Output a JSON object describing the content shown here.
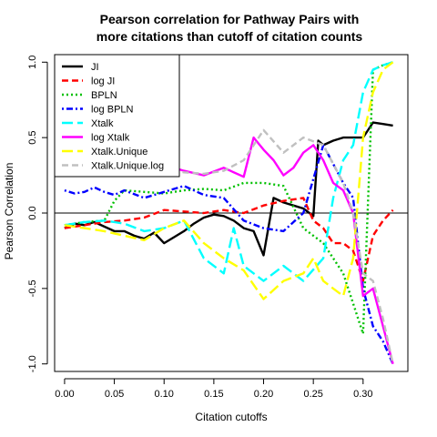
{
  "chart_data": {
    "type": "line",
    "title_line1": "Pearson correlation for Pathway Pairs with",
    "title_line2": "more citations than cutoff of citation counts",
    "xlabel": "Citation cutoffs",
    "ylabel": "Pearson Correlation",
    "xlim": [
      -0.01,
      0.345
    ],
    "ylim": [
      -1.05,
      1.05
    ],
    "xticks": [
      0.0,
      0.05,
      0.1,
      0.15,
      0.2,
      0.25,
      0.3
    ],
    "xtick_labels": [
      "0.00",
      "0.05",
      "0.10",
      "0.15",
      "0.20",
      "0.25",
      "0.30"
    ],
    "yticks": [
      -1.0,
      -0.5,
      0.0,
      0.5,
      1.0
    ],
    "ytick_labels": [
      "-1.0",
      "-0.5",
      "0.0",
      "0.5",
      "1.0"
    ],
    "reference_line_y": 0,
    "legend_position": "top-left",
    "series": [
      {
        "name": "JI",
        "color": "#000000",
        "dash": "solid",
        "x": [
          0.0,
          0.01,
          0.02,
          0.03,
          0.04,
          0.05,
          0.06,
          0.07,
          0.08,
          0.09,
          0.1,
          0.11,
          0.12,
          0.13,
          0.14,
          0.15,
          0.16,
          0.17,
          0.18,
          0.19,
          0.2,
          0.21,
          0.22,
          0.23,
          0.24,
          0.25,
          0.255,
          0.26,
          0.27,
          0.28,
          0.29,
          0.3,
          0.31,
          0.32,
          0.33
        ],
        "y": [
          -0.1,
          -0.07,
          -0.08,
          -0.06,
          -0.09,
          -0.12,
          -0.12,
          -0.15,
          -0.17,
          -0.13,
          -0.2,
          -0.16,
          -0.12,
          -0.07,
          -0.03,
          -0.01,
          -0.02,
          -0.05,
          -0.1,
          -0.12,
          -0.28,
          0.1,
          0.07,
          0.05,
          0.03,
          -0.02,
          0.48,
          0.45,
          0.48,
          0.5,
          0.5,
          0.5,
          0.6,
          0.59,
          0.58
        ]
      },
      {
        "name": "log JI",
        "color": "#ff0000",
        "dash": "dashed",
        "x": [
          0.0,
          0.02,
          0.04,
          0.06,
          0.08,
          0.1,
          0.12,
          0.14,
          0.16,
          0.18,
          0.2,
          0.22,
          0.24,
          0.25,
          0.26,
          0.27,
          0.28,
          0.29,
          0.3,
          0.31,
          0.32,
          0.33
        ],
        "y": [
          -0.1,
          -0.08,
          -0.06,
          -0.05,
          -0.03,
          0.02,
          0.01,
          0.0,
          0.02,
          0.0,
          0.05,
          0.08,
          0.1,
          -0.05,
          -0.1,
          -0.2,
          -0.2,
          -0.25,
          -0.45,
          -0.15,
          -0.05,
          0.02
        ]
      },
      {
        "name": "BPLN",
        "color": "#00c000",
        "dash": "dotted",
        "x": [
          0.0,
          0.02,
          0.04,
          0.05,
          0.06,
          0.08,
          0.1,
          0.12,
          0.14,
          0.16,
          0.18,
          0.2,
          0.22,
          0.24,
          0.26,
          0.28,
          0.29,
          0.3,
          0.31,
          0.32,
          0.33
        ],
        "y": [
          -0.08,
          -0.06,
          -0.05,
          0.08,
          0.15,
          0.14,
          0.13,
          0.15,
          0.16,
          0.15,
          0.2,
          0.2,
          0.18,
          -0.1,
          -0.2,
          -0.4,
          -0.6,
          -0.8,
          0.95,
          0.98,
          1.0
        ]
      },
      {
        "name": "log BPLN",
        "color": "#0000ff",
        "dash": "dashdot",
        "x": [
          0.0,
          0.01,
          0.02,
          0.03,
          0.04,
          0.05,
          0.06,
          0.08,
          0.1,
          0.12,
          0.14,
          0.16,
          0.18,
          0.2,
          0.22,
          0.24,
          0.26,
          0.28,
          0.29,
          0.3,
          0.31,
          0.32,
          0.33
        ],
        "y": [
          0.15,
          0.13,
          0.14,
          0.17,
          0.14,
          0.12,
          0.15,
          0.1,
          0.14,
          0.18,
          0.12,
          0.1,
          -0.05,
          -0.1,
          -0.12,
          0.0,
          0.45,
          0.2,
          0.1,
          -0.5,
          -0.75,
          -0.85,
          -1.0
        ]
      },
      {
        "name": "Xtalk",
        "color": "#00ffff",
        "dash": "longdash",
        "x": [
          0.0,
          0.02,
          0.04,
          0.06,
          0.08,
          0.1,
          0.12,
          0.14,
          0.16,
          0.17,
          0.18,
          0.2,
          0.22,
          0.24,
          0.26,
          0.27,
          0.28,
          0.29,
          0.3,
          0.31,
          0.32,
          0.33
        ],
        "y": [
          -0.08,
          -0.06,
          -0.05,
          -0.07,
          -0.12,
          -0.1,
          -0.05,
          -0.3,
          -0.4,
          -0.1,
          -0.35,
          -0.45,
          -0.35,
          -0.45,
          -0.3,
          0.1,
          0.35,
          0.45,
          0.8,
          0.95,
          0.98,
          1.0
        ]
      },
      {
        "name": "log Xtalk",
        "color": "#ff00ff",
        "dash": "solid",
        "x": [
          0.0,
          0.01,
          0.02,
          0.03,
          0.04,
          0.05,
          0.06,
          0.07,
          0.08,
          0.1,
          0.12,
          0.14,
          0.16,
          0.18,
          0.19,
          0.2,
          0.21,
          0.22,
          0.23,
          0.24,
          0.25,
          0.26,
          0.27,
          0.28,
          0.29,
          0.3,
          0.31,
          0.32,
          0.33
        ],
        "y": [
          0.28,
          0.26,
          0.27,
          0.25,
          0.28,
          0.3,
          0.28,
          0.29,
          0.3,
          0.32,
          0.28,
          0.25,
          0.3,
          0.24,
          0.5,
          0.42,
          0.35,
          0.25,
          0.3,
          0.4,
          0.45,
          0.35,
          0.2,
          0.15,
          0.0,
          -0.55,
          -0.5,
          -0.75,
          -1.0
        ]
      },
      {
        "name": "Xtalk.Unique",
        "color": "#ffff00",
        "dash": "longdash",
        "x": [
          0.0,
          0.02,
          0.04,
          0.06,
          0.08,
          0.1,
          0.12,
          0.14,
          0.16,
          0.18,
          0.2,
          0.22,
          0.24,
          0.25,
          0.26,
          0.27,
          0.28,
          0.29,
          0.3,
          0.31,
          0.32,
          0.33
        ],
        "y": [
          -0.08,
          -0.1,
          -0.12,
          -0.15,
          -0.18,
          -0.1,
          -0.05,
          -0.2,
          -0.3,
          -0.38,
          -0.57,
          -0.45,
          -0.4,
          -0.3,
          -0.45,
          -0.5,
          -0.55,
          -0.3,
          0.5,
          0.8,
          0.95,
          1.0
        ]
      },
      {
        "name": "Xtalk.Unique.log",
        "color": "#c0c0c0",
        "dash": "dashed",
        "x": [
          0.0,
          0.02,
          0.04,
          0.06,
          0.08,
          0.1,
          0.12,
          0.14,
          0.16,
          0.18,
          0.2,
          0.22,
          0.24,
          0.26,
          0.28,
          0.29,
          0.3,
          0.31,
          0.32,
          0.33
        ],
        "y": [
          0.28,
          0.3,
          0.27,
          0.3,
          0.32,
          0.3,
          0.27,
          0.26,
          0.28,
          0.35,
          0.55,
          0.4,
          0.5,
          0.45,
          0.2,
          0.0,
          -0.4,
          -0.45,
          -0.7,
          -1.0
        ]
      }
    ]
  }
}
